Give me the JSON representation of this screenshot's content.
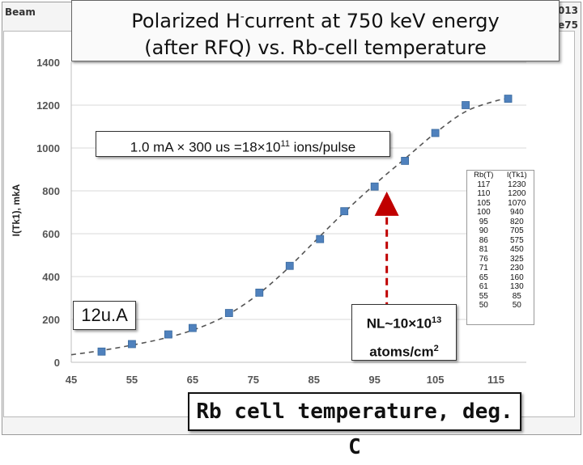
{
  "header": {
    "left_label": "Beam",
    "right_label_1": "013",
    "right_label_2": "e75"
  },
  "title": {
    "line1_a": "Polarized H",
    "line1_sup": "-",
    "line1_b": "current at 750 keV energy",
    "line2": "(after RFQ) vs. Rb-cell temperature"
  },
  "annotations": {
    "ions_text": "1.0 mA × 300 us =18×10",
    "ions_sup": "11",
    "ions_suffix": " ions/pulse",
    "current_text": "12u.A",
    "nl_line1_a": "NL~10×10",
    "nl_line1_sup": "13",
    "nl_line2_a": "atoms/cm",
    "nl_line2_sup": "2",
    "xlabel_text": "Rb cell temperature, deg. C"
  },
  "colors": {
    "marker": "#4f81bd",
    "curve": "#555555",
    "arrow": "#c00000",
    "grid": "#d9d9d9"
  },
  "table": {
    "headers": [
      "Rb(T)",
      "I(Tk1)"
    ],
    "rows": [
      [
        "117",
        "1230"
      ],
      [
        "110",
        "1200"
      ],
      [
        "105",
        "1070"
      ],
      [
        "100",
        "940"
      ],
      [
        "95",
        "820"
      ],
      [
        "90",
        "705"
      ],
      [
        "86",
        "575"
      ],
      [
        "81",
        "450"
      ],
      [
        "76",
        "325"
      ],
      [
        "71",
        "230"
      ],
      [
        "65",
        "160"
      ],
      [
        "61",
        "130"
      ],
      [
        "55",
        "85"
      ],
      [
        "50",
        "50"
      ]
    ]
  },
  "chart_data": {
    "type": "scatter",
    "title": "Polarized H-current at 750 keV energy (after RFQ) vs. Rb-cell temperature",
    "xlabel": "Rb cell temperature, deg. C",
    "ylabel": "I(Tk1), mkA",
    "xlim": [
      45,
      120
    ],
    "ylim": [
      0,
      1400
    ],
    "xticks": [
      45,
      55,
      65,
      75,
      85,
      95,
      105,
      115
    ],
    "yticks": [
      0,
      200,
      400,
      600,
      800,
      1000,
      1200,
      1400
    ],
    "grid": "horizontal",
    "series": [
      {
        "name": "I(Tk1)",
        "x": [
          50,
          55,
          61,
          65,
          71,
          76,
          81,
          86,
          90,
          95,
          100,
          105,
          110,
          117
        ],
        "y": [
          50,
          85,
          130,
          160,
          230,
          325,
          450,
          575,
          705,
          820,
          940,
          1070,
          1200,
          1230
        ]
      }
    ],
    "fit_curve": {
      "style": "dashed",
      "x": [
        45,
        50,
        55,
        60,
        65,
        70,
        75,
        80,
        85,
        90,
        95,
        100,
        105,
        110,
        115,
        117
      ],
      "y": [
        35,
        55,
        80,
        110,
        150,
        210,
        300,
        420,
        560,
        700,
        830,
        950,
        1070,
        1170,
        1220,
        1230
      ]
    },
    "arrow_annotation": {
      "x": 97,
      "y_from": 20,
      "y_to": 740
    }
  }
}
